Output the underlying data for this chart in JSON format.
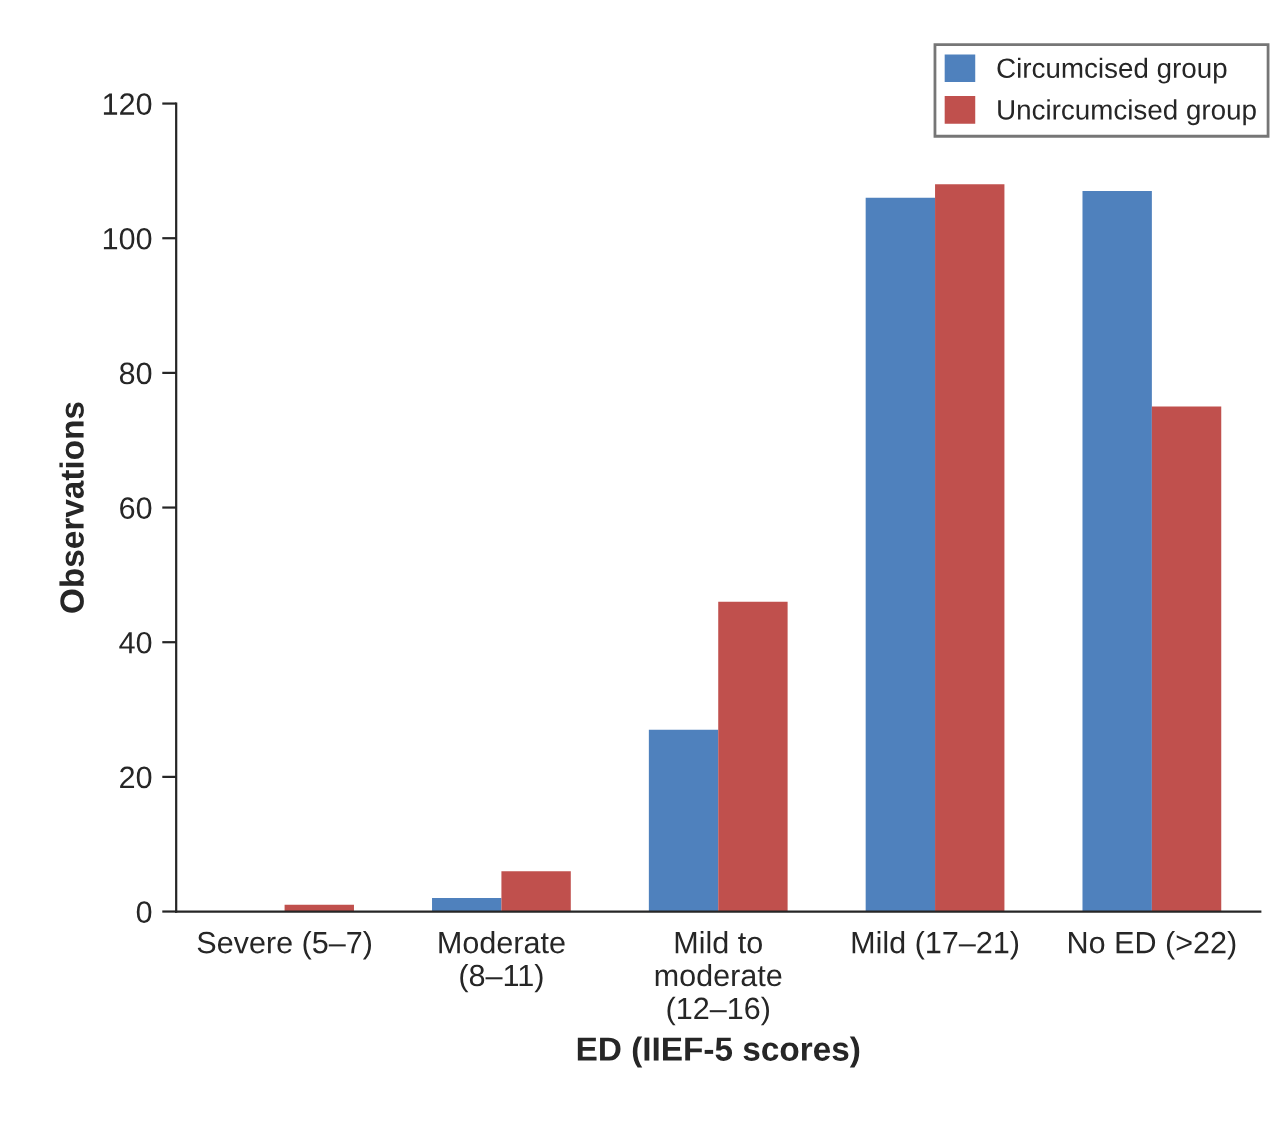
{
  "chart_data": {
    "type": "bar",
    "xlabel": "ED (IIEF-5 scores)",
    "ylabel": "Observations",
    "categories": [
      "Severe (5–7)",
      "Moderate\n(8–11)",
      "Mild to\nmoderate\n(12–16)",
      "Mild (17–21)",
      "No ED (>22)"
    ],
    "series": [
      {
        "name": "Circumcised group",
        "color": "#4f81bd",
        "values": [
          0,
          2,
          27,
          106,
          107
        ]
      },
      {
        "name": "Uncircumcised group",
        "color": "#c0504d",
        "values": [
          1,
          6,
          46,
          108,
          75
        ]
      }
    ],
    "ylim": [
      0,
      120
    ],
    "yticks": [
      0,
      20,
      40,
      60,
      80,
      100,
      120
    ],
    "grid": false,
    "legend": "top right"
  }
}
